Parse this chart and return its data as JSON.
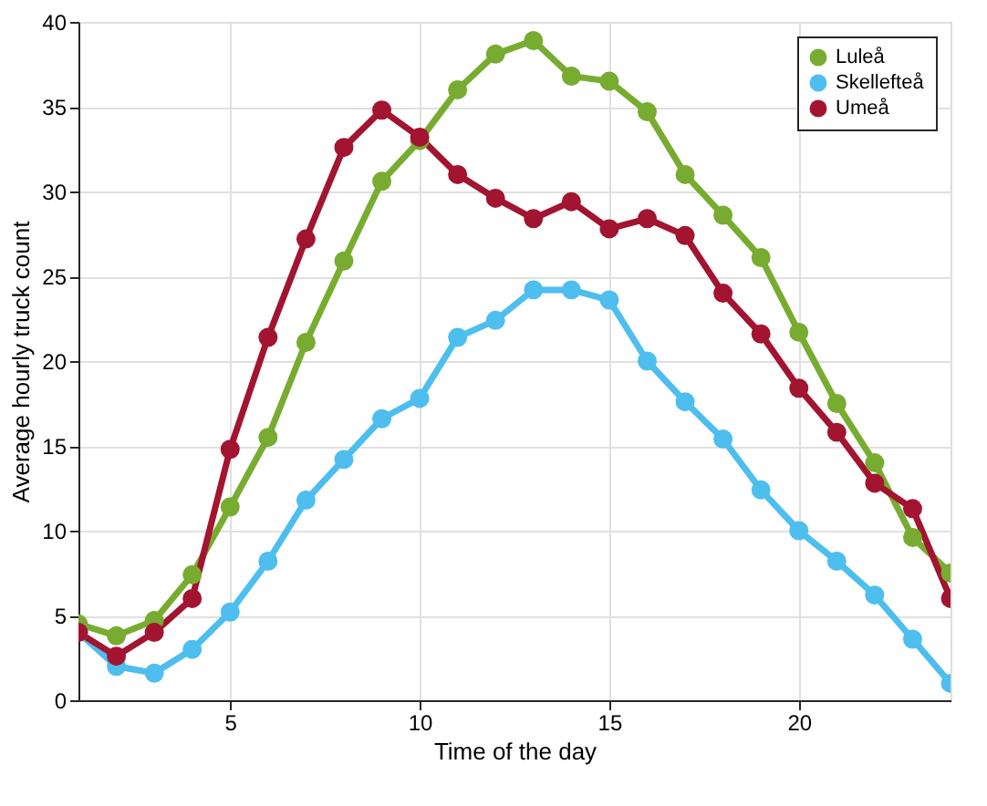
{
  "chart_data": {
    "type": "line",
    "xlabel": "Time of the day",
    "ylabel": "Average hourly truck count",
    "x": [
      1,
      2,
      3,
      4,
      5,
      6,
      7,
      8,
      9,
      10,
      11,
      12,
      13,
      14,
      15,
      16,
      17,
      18,
      19,
      20,
      21,
      22,
      23,
      24
    ],
    "series": [
      {
        "name": "Luleå",
        "color": "#77ac30",
        "values": [
          4.5,
          3.8,
          4.7,
          7.4,
          11.4,
          15.5,
          21.1,
          25.9,
          30.6,
          33.0,
          36.0,
          38.1,
          38.9,
          36.8,
          36.5,
          34.7,
          31.0,
          28.6,
          26.1,
          21.7,
          17.5,
          14.0,
          9.6,
          7.5
        ]
      },
      {
        "name": "Skellefteå",
        "color": "#4dbeee",
        "values": [
          4.0,
          2.0,
          1.6,
          3.0,
          5.2,
          8.2,
          11.8,
          14.2,
          16.6,
          17.8,
          21.4,
          22.4,
          24.2,
          24.2,
          23.6,
          20.0,
          17.6,
          15.4,
          12.4,
          10.0,
          8.2,
          6.2,
          3.6,
          1.0
        ]
      },
      {
        "name": "Umeå",
        "color": "#a2142f",
        "values": [
          4.0,
          2.6,
          4.0,
          6.0,
          14.8,
          21.4,
          27.2,
          32.6,
          34.8,
          33.2,
          31.0,
          29.6,
          28.4,
          29.4,
          27.8,
          28.4,
          27.4,
          24.0,
          21.6,
          18.4,
          15.8,
          12.8,
          11.3,
          6.0
        ]
      }
    ],
    "xlim": [
      1,
      24
    ],
    "xticks": [
      5,
      10,
      15,
      20
    ],
    "ylim": [
      0,
      40
    ],
    "yticks": [
      0,
      5,
      10,
      15,
      20,
      25,
      30,
      35,
      40
    ],
    "grid": true,
    "legend": "top right",
    "marker": "circle",
    "line_style": "solid"
  }
}
